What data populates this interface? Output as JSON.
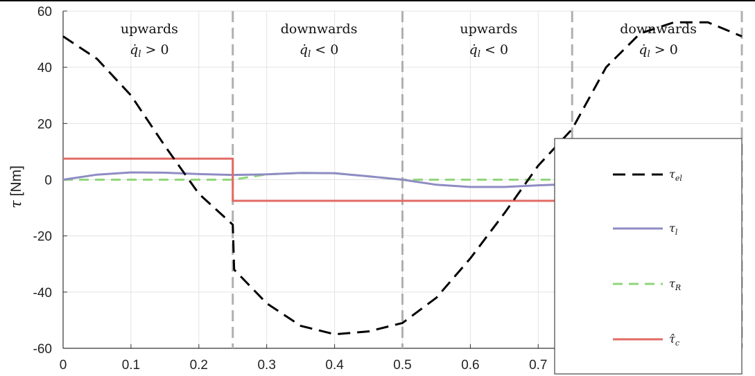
{
  "chart_data": {
    "type": "line",
    "ylabel_symbol": "τ",
    "ylabel_unit": "[Nm]",
    "xlim": [
      0,
      1
    ],
    "ylim": [
      -60,
      60
    ],
    "x_ticks": [
      "0",
      "0.1",
      "0.2",
      "0.3",
      "0.4",
      "0.5",
      "0.6",
      "0.7"
    ],
    "y_ticks": [
      "60",
      "40",
      "20",
      "0",
      "-20",
      "-40",
      "-60"
    ],
    "grid": true,
    "legend_position": "bottom-right",
    "colors": {
      "tau_el": "#000000",
      "tau_l": "#8e8cc4",
      "tau_R": "#8fd67a",
      "tau_c_hat": "#e36a64",
      "boundary": "#b0b0b0"
    },
    "phase_boundaries": [
      0.25,
      0.5,
      0.75,
      1.0
    ],
    "regions": [
      {
        "label": "upwards",
        "cond_sym": "q̇",
        "cond_sub": "l",
        "cond_rel": "> 0"
      },
      {
        "label": "downwards",
        "cond_sym": "q̇",
        "cond_sub": "l",
        "cond_rel": "< 0"
      },
      {
        "label": "upwards",
        "cond_sym": "q̇",
        "cond_sub": "l",
        "cond_rel": "< 0"
      },
      {
        "label": "downwards",
        "cond_sym": "q̇",
        "cond_sub": "l",
        "cond_rel": "> 0"
      }
    ],
    "series": [
      {
        "name": "τel",
        "sym": "τ",
        "sub": "el",
        "style": "dashed",
        "x": [
          0,
          0.05,
          0.1,
          0.15,
          0.2,
          0.25,
          0.252,
          0.3,
          0.35,
          0.4,
          0.45,
          0.5,
          0.55,
          0.6,
          0.65,
          0.7,
          0.75,
          0.8,
          0.85,
          0.9,
          0.95,
          1.0
        ],
        "y": [
          51,
          43,
          30,
          12,
          -5,
          -16,
          -32,
          -44,
          -52,
          -55,
          -54,
          -51,
          -42,
          -28,
          -12,
          5,
          18,
          40,
          52,
          56,
          56,
          51
        ]
      },
      {
        "name": "τl",
        "sym": "τ",
        "sub": "l",
        "style": "solid",
        "x": [
          0,
          0.05,
          0.1,
          0.15,
          0.2,
          0.25,
          0.3,
          0.35,
          0.4,
          0.45,
          0.5,
          0.55,
          0.6,
          0.65,
          0.7,
          0.735
        ],
        "y": [
          0,
          1.8,
          2.6,
          2.5,
          2.0,
          1.7,
          1.9,
          2.4,
          2.3,
          1.2,
          0,
          -1.8,
          -2.6,
          -2.6,
          -2.0,
          -1.7
        ]
      },
      {
        "name": "τR",
        "sym": "τ",
        "sub": "R",
        "style": "dashed",
        "x": [
          0,
          0.25,
          0.3,
          0.35,
          0.4,
          0.45,
          0.5,
          0.735
        ],
        "y": [
          0,
          0,
          1.9,
          2.4,
          2.3,
          1.2,
          0,
          0
        ]
      },
      {
        "name": "τ̂c",
        "sym": "τ̂",
        "sub": "c",
        "style": "solid",
        "x": [
          0,
          0.25,
          0.25,
          0.735
        ],
        "y": [
          7.5,
          7.5,
          -7.5,
          -7.5
        ]
      }
    ]
  }
}
